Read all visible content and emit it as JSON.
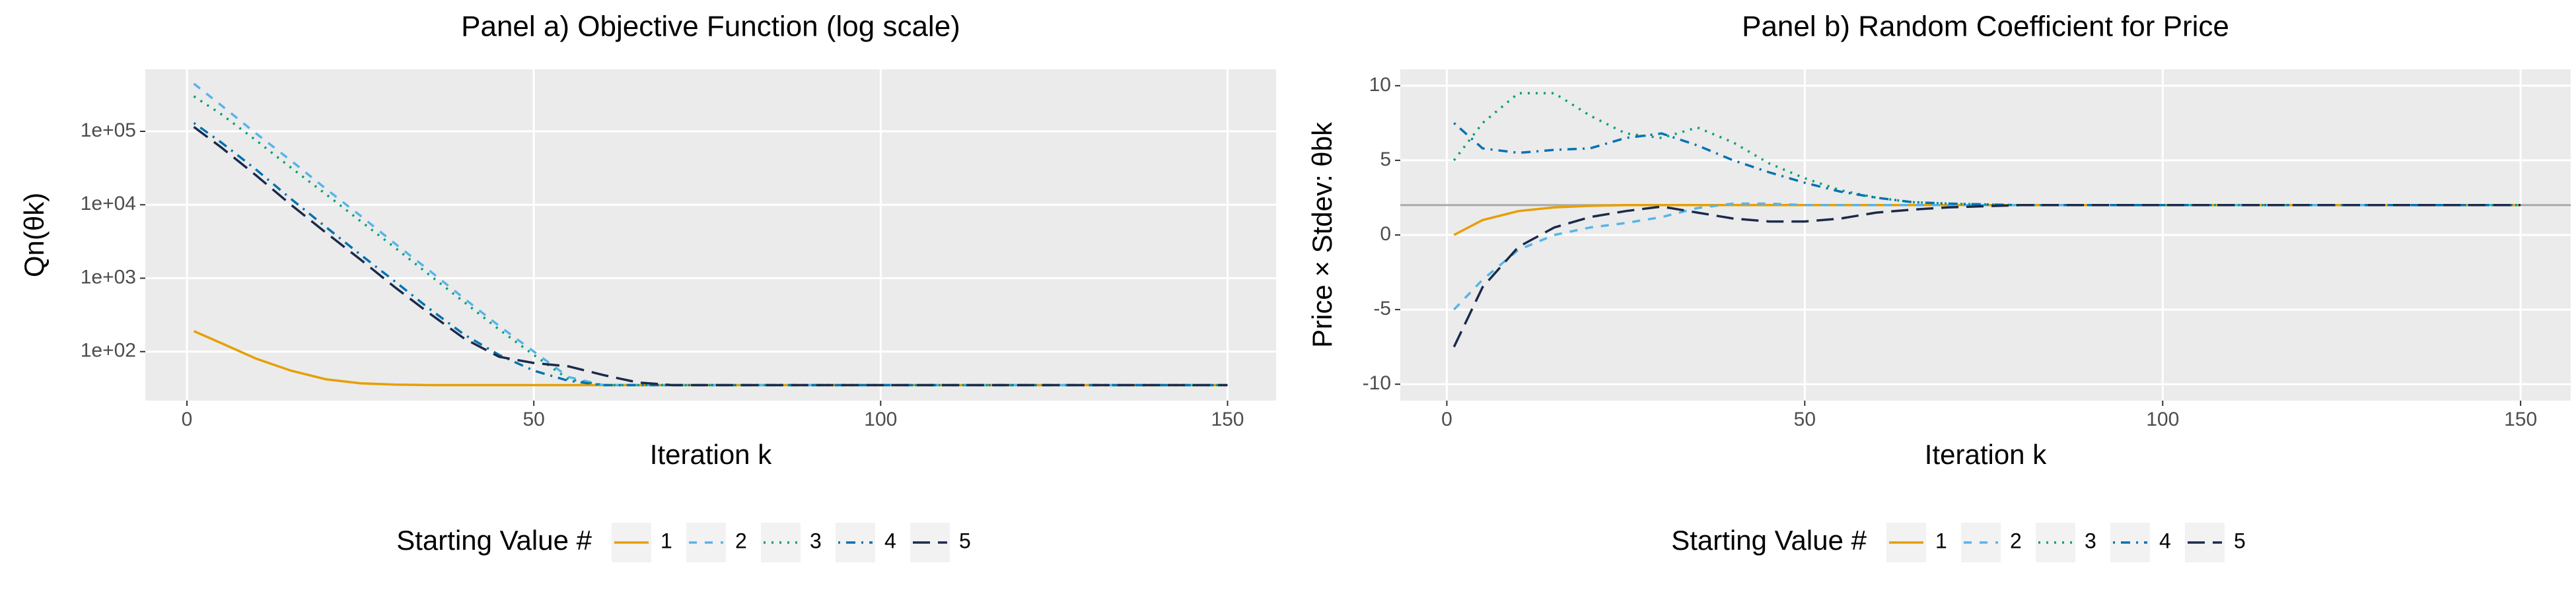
{
  "chart_data": [
    {
      "type": "line",
      "title": "Panel a) Objective Function (log scale)",
      "x_label": "Iteration k",
      "y_label": "Qn(θk)",
      "log_y": true,
      "grid": true,
      "legend_position": "bottom",
      "legend_title": "Starting Value #",
      "xlim": [
        -6,
        157
      ],
      "xticks": [
        0,
        50,
        100,
        150
      ],
      "ylim": [
        21.5,
        700000
      ],
      "yticks": [
        {
          "value": 100,
          "label": "1e+02"
        },
        {
          "value": 1000,
          "label": "1e+03"
        },
        {
          "value": 10000,
          "label": "1e+04"
        },
        {
          "value": 100000,
          "label": "1e+05"
        }
      ],
      "x": [
        1,
        5,
        10,
        15,
        20,
        25,
        30,
        35,
        40,
        45,
        50,
        55,
        60,
        65,
        70,
        80,
        90,
        100,
        110,
        120,
        130,
        140,
        150
      ],
      "series": [
        {
          "name": "1",
          "color": "#E69F00",
          "dash": "solid",
          "values": [
            190,
            130,
            80,
            55,
            42,
            37,
            35.5,
            35,
            35,
            35,
            35,
            35,
            35,
            35,
            35,
            35,
            35,
            35,
            35,
            35,
            35,
            35,
            35
          ]
        },
        {
          "name": "2",
          "color": "#56B4E9",
          "dash": "dashed",
          "values": [
            447000,
            224000,
            93000,
            40000,
            16600,
            7100,
            2950,
            1260,
            525,
            224,
            100,
            45,
            35,
            35,
            35,
            35,
            35,
            35,
            35,
            35,
            35,
            35,
            35
          ]
        },
        {
          "name": "3",
          "color": "#009E73",
          "dash": "dotted",
          "values": [
            300000,
            170000,
            75000,
            32000,
            14000,
            6000,
            2600,
            1100,
            470,
            200,
            90,
            42,
            35,
            35,
            35,
            35,
            35,
            35,
            35,
            35,
            35,
            35,
            35
          ]
        },
        {
          "name": "4",
          "color": "#0072B2",
          "dash": "dotdash",
          "values": [
            130000,
            70000,
            30000,
            12000,
            5000,
            2100,
            900,
            380,
            170,
            90,
            55,
            40,
            35,
            35,
            35,
            35,
            35,
            35,
            35,
            35,
            35,
            35,
            35
          ]
        },
        {
          "name": "5",
          "color": "#1B2A4A",
          "dash": "longdash",
          "values": [
            115000,
            60000,
            25000,
            10000,
            4200,
            1800,
            750,
            330,
            150,
            85,
            70,
            63,
            48,
            38,
            35,
            35,
            35,
            35,
            35,
            35,
            35,
            35,
            35
          ]
        }
      ]
    },
    {
      "type": "line",
      "title": "Panel b) Random Coefficient for Price",
      "x_label": "Iteration k",
      "y_label": "Price × Stdev: θbk",
      "log_y": false,
      "grid": true,
      "legend_position": "bottom",
      "legend_title": "Starting Value #",
      "xlim": [
        -6.5,
        157
      ],
      "xticks": [
        0,
        50,
        100,
        150
      ],
      "ylim": [
        -11.1,
        11.1
      ],
      "yticks": [
        -10,
        -5,
        0,
        5,
        10
      ],
      "hline": 2,
      "hline_color": "#AAAAAA",
      "x": [
        1,
        5,
        10,
        15,
        20,
        25,
        30,
        35,
        40,
        45,
        50,
        55,
        60,
        65,
        70,
        80,
        90,
        100,
        110,
        120,
        130,
        140,
        150
      ],
      "series": [
        {
          "name": "1",
          "color": "#E69F00",
          "dash": "solid",
          "values": [
            0,
            1,
            1.6,
            1.85,
            1.95,
            2,
            2,
            2,
            2,
            2,
            2,
            2,
            2,
            2,
            2,
            2,
            2,
            2,
            2,
            2,
            2,
            2,
            2
          ]
        },
        {
          "name": "2",
          "color": "#56B4E9",
          "dash": "dashed",
          "values": [
            -5,
            -3,
            -1,
            0,
            0.5,
            0.8,
            1.2,
            1.8,
            2.1,
            2.1,
            2,
            2,
            2,
            2,
            2,
            2,
            2,
            2,
            2,
            2,
            2,
            2,
            2
          ]
        },
        {
          "name": "3",
          "color": "#009E73",
          "dash": "dotted",
          "values": [
            5,
            7.5,
            9.5,
            9.5,
            8,
            6.8,
            6.5,
            7.2,
            6.2,
            4.8,
            3.8,
            3,
            2.5,
            2.2,
            2.1,
            2,
            2,
            2,
            2,
            2,
            2,
            2,
            2
          ]
        },
        {
          "name": "4",
          "color": "#0072B2",
          "dash": "dotdash",
          "values": [
            7.5,
            5.8,
            5.5,
            5.7,
            5.8,
            6.5,
            6.8,
            6,
            5,
            4.2,
            3.5,
            2.9,
            2.5,
            2.2,
            2.1,
            2,
            2,
            2,
            2,
            2,
            2,
            2,
            2
          ]
        },
        {
          "name": "5",
          "color": "#1B2A4A",
          "dash": "longdash",
          "values": [
            -7.5,
            -3.5,
            -0.8,
            0.5,
            1.2,
            1.6,
            1.9,
            1.5,
            1.1,
            0.9,
            0.9,
            1.1,
            1.5,
            1.7,
            1.85,
            2,
            2,
            2,
            2,
            2,
            2,
            2,
            2
          ]
        }
      ]
    }
  ]
}
